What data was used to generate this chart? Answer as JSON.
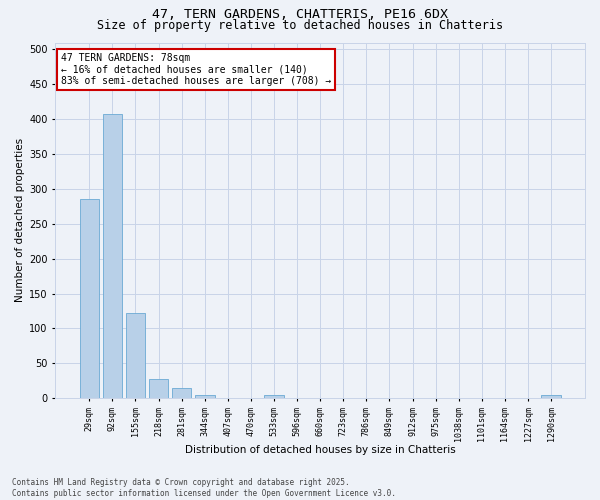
{
  "title_line1": "47, TERN GARDENS, CHATTERIS, PE16 6DX",
  "title_line2": "Size of property relative to detached houses in Chatteris",
  "xlabel": "Distribution of detached houses by size in Chatteris",
  "ylabel": "Number of detached properties",
  "categories": [
    "29sqm",
    "92sqm",
    "155sqm",
    "218sqm",
    "281sqm",
    "344sqm",
    "407sqm",
    "470sqm",
    "533sqm",
    "596sqm",
    "660sqm",
    "723sqm",
    "786sqm",
    "849sqm",
    "912sqm",
    "975sqm",
    "1038sqm",
    "1101sqm",
    "1164sqm",
    "1227sqm",
    "1290sqm"
  ],
  "values": [
    285,
    408,
    122,
    28,
    14,
    4,
    0,
    0,
    5,
    0,
    0,
    0,
    0,
    0,
    0,
    0,
    0,
    0,
    0,
    0,
    4
  ],
  "bar_color": "#b8d0e8",
  "bar_edge_color": "#6aaad4",
  "grid_color": "#c8d4e8",
  "background_color": "#eef2f8",
  "annotation_text": "47 TERN GARDENS: 78sqm\n← 16% of detached houses are smaller (140)\n83% of semi-detached houses are larger (708) →",
  "annotation_box_color": "#ffffff",
  "annotation_border_color": "#cc0000",
  "footnote": "Contains HM Land Registry data © Crown copyright and database right 2025.\nContains public sector information licensed under the Open Government Licence v3.0.",
  "ylim": [
    0,
    510
  ],
  "yticks": [
    0,
    50,
    100,
    150,
    200,
    250,
    300,
    350,
    400,
    450,
    500
  ],
  "title_fontsize": 9.5,
  "subtitle_fontsize": 8.5,
  "annotation_fontsize": 7,
  "footnote_fontsize": 5.5,
  "axis_label_fontsize": 7.5,
  "tick_fontsize": 7,
  "xtick_fontsize": 6
}
